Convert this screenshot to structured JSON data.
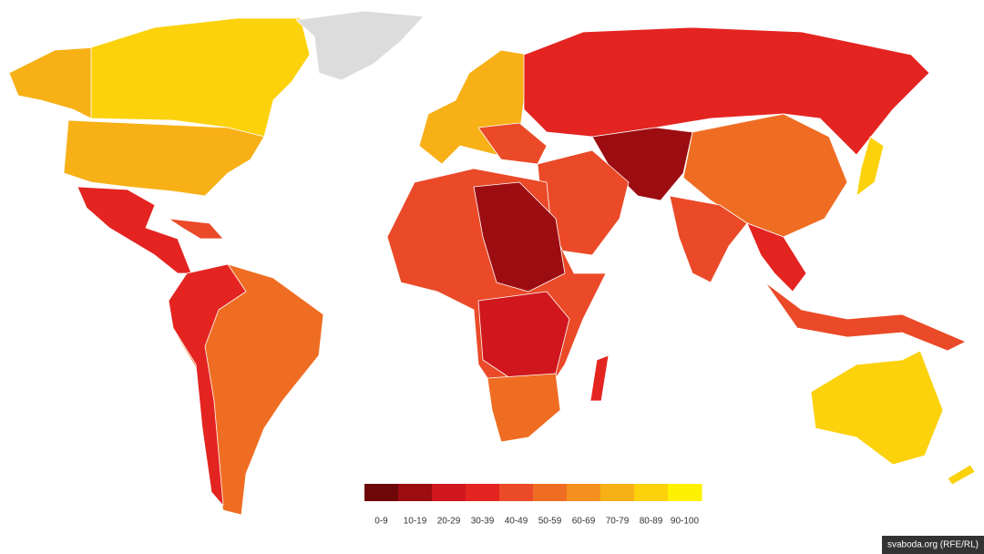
{
  "legend": {
    "items": [
      {
        "label": "0-9",
        "color": "#6e0708"
      },
      {
        "label": "10-19",
        "color": "#9c0d12"
      },
      {
        "label": "20-29",
        "color": "#cf171d"
      },
      {
        "label": "30-39",
        "color": "#e42421"
      },
      {
        "label": "40-49",
        "color": "#ea4a28"
      },
      {
        "label": "50-59",
        "color": "#ef6d23"
      },
      {
        "label": "60-69",
        "color": "#f4901e"
      },
      {
        "label": "70-79",
        "color": "#f7b016"
      },
      {
        "label": "80-89",
        "color": "#fbd20c"
      },
      {
        "label": "90-100",
        "color": "#fff200"
      }
    ]
  },
  "credit": "svaboda.org (RFE/RL)"
}
